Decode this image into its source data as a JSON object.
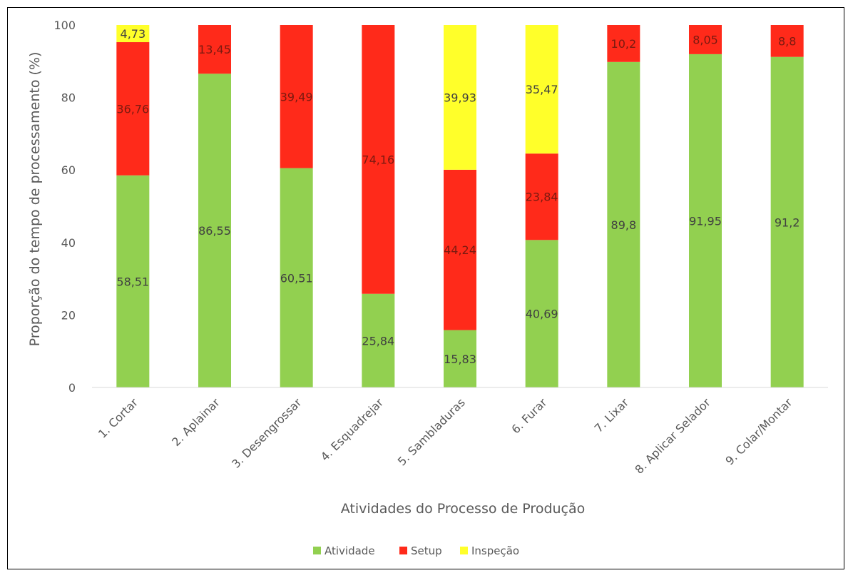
{
  "chart_data": {
    "type": "bar",
    "stacked": true,
    "categories": [
      "1. Cortar",
      "2. Aplainar",
      "3. Desengrossar",
      "4. Esquadrejar",
      "5. Sambladuras",
      "6. Furar",
      "7. Lixar",
      "8. Aplicar Selador",
      "9. Colar/Montar"
    ],
    "series": [
      {
        "name": "Atividade",
        "color": "#92d050",
        "values": [
          58.51,
          86.55,
          60.51,
          25.84,
          15.83,
          40.69,
          89.8,
          91.95,
          91.2
        ],
        "labels": [
          "58,51",
          "86,55",
          "60,51",
          "25,84",
          "15,83",
          "40,69",
          "89,8",
          "91,95",
          "91,2"
        ]
      },
      {
        "name": "Setup",
        "color": "#ff2a1a",
        "values": [
          36.76,
          13.45,
          39.49,
          74.16,
          44.24,
          23.84,
          10.2,
          8.05,
          8.8
        ],
        "labels": [
          "36,76",
          "13,45",
          "39,49",
          "74,16",
          "44,24",
          "23,84",
          "10,2",
          "8,05",
          "8,8"
        ]
      },
      {
        "name": "Inspeção",
        "color": "#ffff2a",
        "values": [
          4.73,
          0,
          0,
          0,
          39.93,
          35.47,
          0,
          0,
          0
        ],
        "labels": [
          "4,73",
          "",
          "",
          "",
          "39,93",
          "35,47",
          "",
          "",
          ""
        ]
      }
    ],
    "ylim": [
      0,
      100
    ],
    "yticks": [
      0,
      20,
      40,
      60,
      80,
      100
    ],
    "ylabel": "Proporção do tempo de processamento (%)",
    "xlabel": "Atividades do Processo de Produção",
    "legend_position": "bottom",
    "grid": false
  }
}
